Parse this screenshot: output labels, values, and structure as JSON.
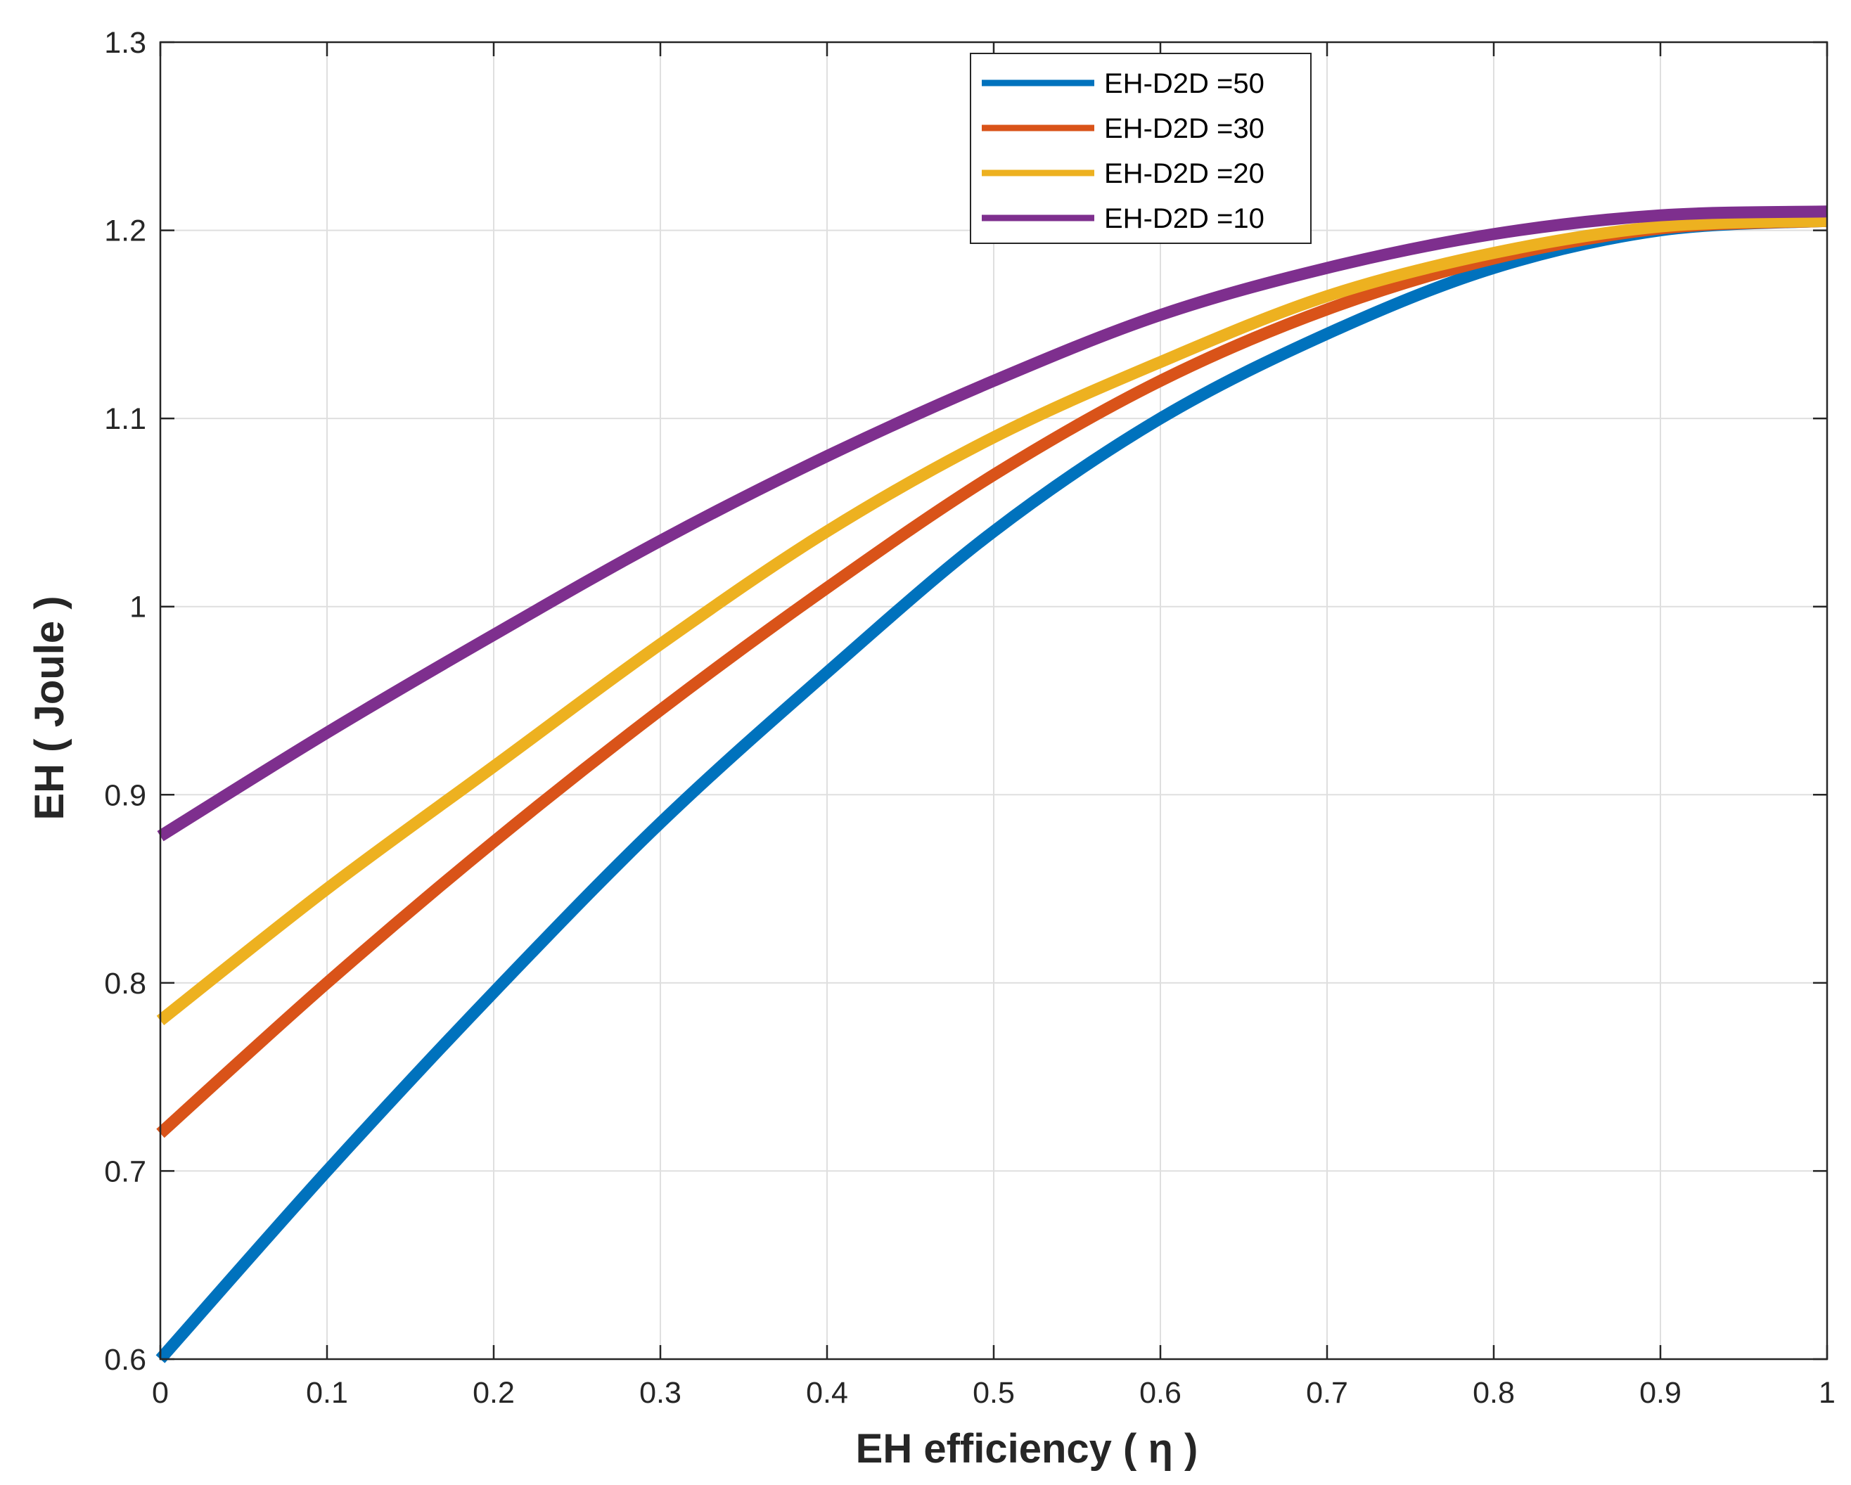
{
  "chart_data": {
    "type": "line",
    "title": "",
    "xlabel": "EH efficiency ( η )",
    "ylabel": "EH ( Joule )",
    "xlim": [
      0,
      1
    ],
    "ylim": [
      0.6,
      1.3
    ],
    "xticks": [
      0,
      0.1,
      0.2,
      0.3,
      0.4,
      0.5,
      0.6,
      0.7,
      0.8,
      0.9,
      1
    ],
    "xtick_labels": [
      "0",
      "0.1",
      "0.2",
      "0.3",
      "0.4",
      "0.5",
      "0.6",
      "0.7",
      "0.8",
      "0.9",
      "1"
    ],
    "yticks": [
      0.6,
      0.7,
      0.8,
      0.9,
      1.0,
      1.1,
      1.2,
      1.3
    ],
    "ytick_labels": [
      "0.6",
      "0.7",
      "0.8",
      "0.9",
      "1",
      "1.1",
      "1.2",
      "1.3"
    ],
    "grid": true,
    "legend_position": "top-right",
    "x": [
      0,
      0.1,
      0.2,
      0.3,
      0.4,
      0.5,
      0.6,
      0.7,
      0.8,
      0.9,
      1.0
    ],
    "series": [
      {
        "name": "EH-D2D =50",
        "color": "#0072BD",
        "values": [
          0.6,
          0.7,
          0.795,
          0.885,
          0.965,
          1.04,
          1.1,
          1.145,
          1.18,
          1.2,
          1.205
        ]
      },
      {
        "name": "EH-D2D =30",
        "color": "#D95319",
        "values": [
          0.72,
          0.8,
          0.875,
          0.945,
          1.01,
          1.07,
          1.12,
          1.158,
          1.185,
          1.201,
          1.205
        ]
      },
      {
        "name": "EH-D2D =20",
        "color": "#EDB120",
        "values": [
          0.78,
          0.85,
          0.915,
          0.98,
          1.04,
          1.09,
          1.13,
          1.165,
          1.188,
          1.202,
          1.205
        ]
      },
      {
        "name": "EH-D2D =10",
        "color": "#7E2F8E",
        "values": [
          0.878,
          0.933,
          0.985,
          1.035,
          1.08,
          1.12,
          1.155,
          1.18,
          1.198,
          1.208,
          1.21
        ]
      }
    ]
  }
}
